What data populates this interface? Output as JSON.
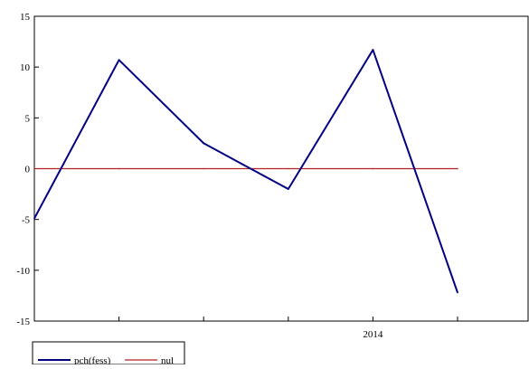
{
  "chart_data": {
    "type": "line",
    "x": [
      "",
      "",
      "",
      "",
      "2014",
      ""
    ],
    "x_tick_labels": [
      "2014"
    ],
    "series": [
      {
        "name": "pch(fess)",
        "color": "#000080",
        "values": [
          -4.9,
          10.7,
          2.5,
          -2.0,
          11.7,
          -12.2
        ]
      },
      {
        "name": "nul",
        "color": "#b22222",
        "values": [
          0,
          0,
          0,
          0,
          0,
          0
        ]
      }
    ],
    "ylim": [
      -15,
      15
    ],
    "yticks": [
      "15",
      "10",
      "5",
      "0",
      "-5",
      "-10",
      "-15"
    ],
    "title": "",
    "xlabel": "",
    "ylabel": "",
    "grid": false,
    "legend_position": "bottom-left"
  }
}
